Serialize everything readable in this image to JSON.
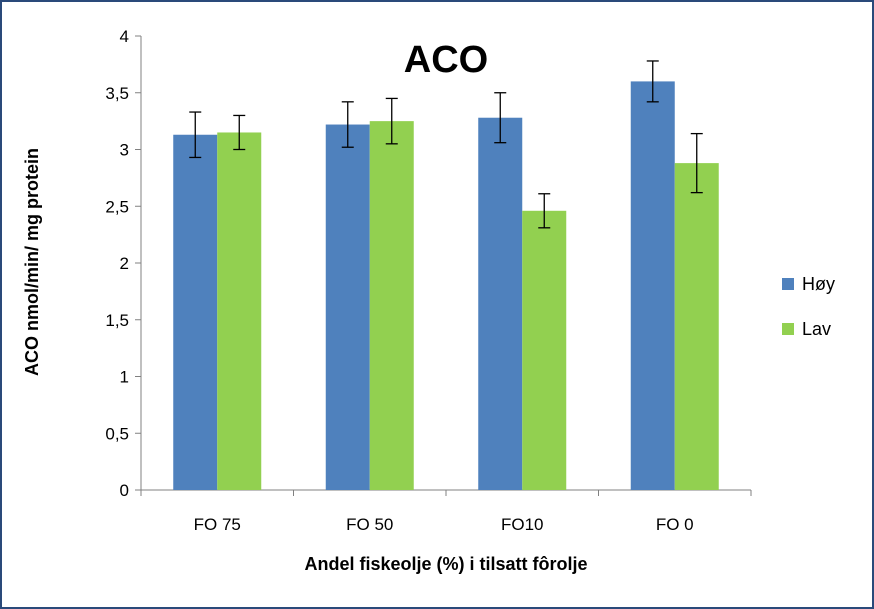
{
  "chart_data": {
    "type": "bar",
    "title": "ACO",
    "xlabel": "Andel fiskeolje (%) i tilsatt fôrolje",
    "ylabel": "ACO nmol/min/ mg protein",
    "ylim": [
      0,
      4
    ],
    "yticks": [
      0,
      0.5,
      1,
      1.5,
      2,
      2.5,
      3,
      3.5,
      4
    ],
    "ytick_labels": [
      "0",
      "0,5",
      "1",
      "1,5",
      "2",
      "2,5",
      "3",
      "3,5",
      "4"
    ],
    "categories": [
      "FO 75",
      "FO 50",
      "FO10",
      "FO 0"
    ],
    "grid": false,
    "legend_position": "right",
    "series": [
      {
        "name": "Høy",
        "color": "#4f81bd",
        "values": [
          3.13,
          3.22,
          3.28,
          3.6
        ],
        "errors": [
          0.2,
          0.2,
          0.22,
          0.18
        ]
      },
      {
        "name": "Lav",
        "color": "#92d050",
        "values": [
          3.15,
          3.25,
          2.46,
          2.88
        ],
        "errors": [
          0.15,
          0.2,
          0.15,
          0.26
        ]
      }
    ]
  }
}
